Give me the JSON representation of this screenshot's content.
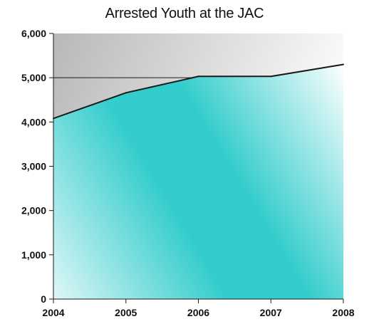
{
  "chart_data": {
    "type": "area",
    "title": "Arrested Youth at the JAC",
    "xlabel": "",
    "ylabel": "",
    "categories": [
      "2004",
      "2005",
      "2006",
      "2007",
      "2008"
    ],
    "values": [
      4080,
      4660,
      5030,
      5030,
      5300
    ],
    "ylim": [
      0,
      6000
    ],
    "yticks": [
      0,
      1000,
      2000,
      3000,
      4000,
      5000,
      6000
    ],
    "ytick_labels": [
      "0",
      "1,000",
      "2,000",
      "3,000",
      "4,000",
      "5,000",
      "6,000"
    ],
    "gridlines": [
      5000
    ],
    "legend": "none",
    "colors": {
      "area_fill": "#33cccc",
      "area_highlight": "#ffffff",
      "plot_background_dark": "#b8b8b8",
      "plot_background_light": "#ffffff",
      "line": "#1a1a1a"
    }
  }
}
